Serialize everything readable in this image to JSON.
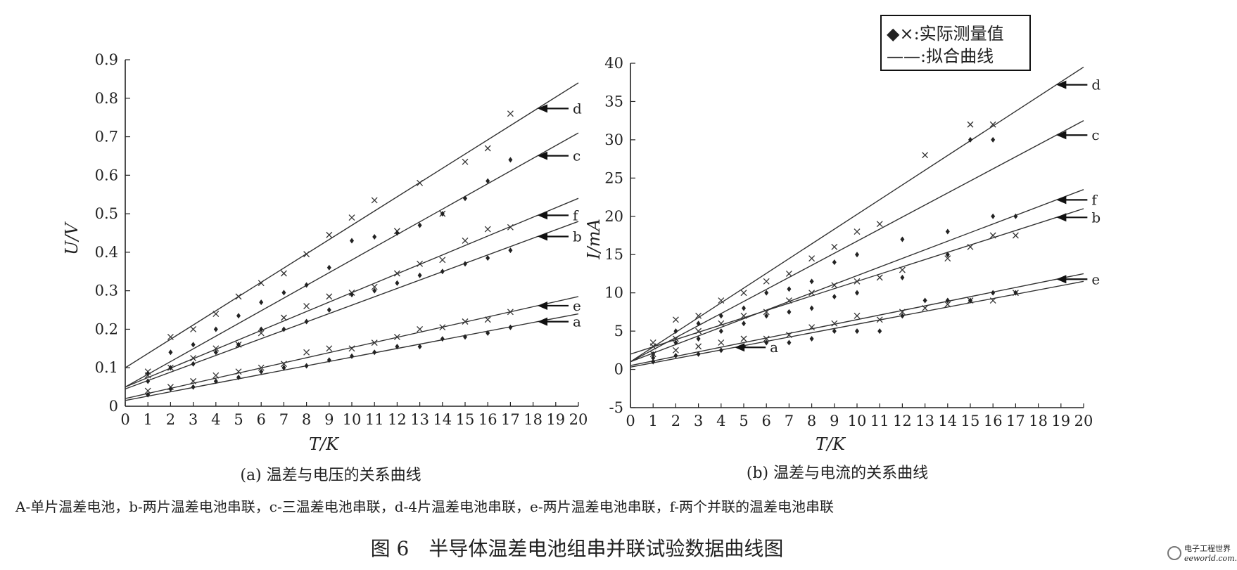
{
  "chart_data": [
    {
      "type": "scatter",
      "panel": "a",
      "caption": "(a) 温差与电压的关系曲线",
      "xlabel": "T/K",
      "ylabel": "U/V",
      "xlim": [
        0,
        20
      ],
      "ylim": [
        0,
        0.9
      ],
      "x_ticks": [
        "0",
        "1",
        "2",
        "3",
        "4",
        "5",
        "6",
        "7",
        "8",
        "9",
        "10",
        "11",
        "12",
        "13",
        "14",
        "15",
        "16",
        "17",
        "18",
        "19",
        "20"
      ],
      "y_ticks": [
        "0",
        "0.1",
        "0.2",
        "0.3",
        "0.4",
        "0.5",
        "0.6",
        "0.7",
        "0.8",
        "0.9"
      ],
      "grid": false,
      "fits": [
        {
          "name": "d",
          "start": 0.1,
          "end": 0.84,
          "label_x": 18.2
        },
        {
          "name": "c",
          "start": 0.05,
          "end": 0.71,
          "label_x": 18.2
        },
        {
          "name": "f",
          "start": 0.05,
          "end": 0.54,
          "label_x": 18.2
        },
        {
          "name": "b",
          "start": 0.045,
          "end": 0.48,
          "label_x": 18.2
        },
        {
          "name": "e",
          "start": 0.02,
          "end": 0.285,
          "label_x": 18.2
        },
        {
          "name": "a",
          "start": 0.015,
          "end": 0.24,
          "label_x": 18.2
        }
      ],
      "series": [
        {
          "marker": "x",
          "x": [
            1,
            2,
            3,
            4,
            5,
            6,
            7,
            8,
            9,
            10,
            11,
            12,
            13,
            14,
            15,
            16,
            17
          ],
          "y": [
            0.09,
            0.18,
            0.2,
            0.24,
            0.285,
            0.32,
            0.345,
            0.395,
            0.445,
            0.49,
            0.535,
            0.455,
            0.58,
            0.5,
            0.635,
            0.67,
            0.76
          ]
        },
        {
          "marker": "diamond",
          "x": [
            1,
            2,
            3,
            4,
            5,
            6,
            7,
            8,
            9,
            10,
            11,
            12,
            13,
            14,
            15,
            16,
            17
          ],
          "y": [
            0.085,
            0.14,
            0.16,
            0.2,
            0.235,
            0.27,
            0.295,
            0.315,
            0.36,
            0.43,
            0.44,
            0.45,
            0.47,
            0.5,
            0.54,
            0.585,
            0.64
          ]
        },
        {
          "marker": "x",
          "x": [
            1,
            2,
            3,
            4,
            5,
            6,
            7,
            8,
            9,
            10,
            11,
            12,
            13,
            14,
            15,
            16,
            17
          ],
          "y": [
            0.08,
            0.1,
            0.125,
            0.15,
            0.16,
            0.19,
            0.23,
            0.26,
            0.285,
            0.295,
            0.31,
            0.345,
            0.37,
            0.38,
            0.43,
            0.46,
            0.465
          ]
        },
        {
          "marker": "diamond",
          "x": [
            1,
            2,
            3,
            4,
            5,
            6,
            7,
            8,
            9,
            10,
            11,
            12,
            13,
            14,
            15,
            16,
            17
          ],
          "y": [
            0.065,
            0.1,
            0.11,
            0.14,
            0.16,
            0.2,
            0.2,
            0.22,
            0.25,
            0.29,
            0.3,
            0.32,
            0.34,
            0.35,
            0.37,
            0.385,
            0.405
          ]
        },
        {
          "marker": "x",
          "x": [
            1,
            2,
            3,
            4,
            5,
            6,
            7,
            8,
            9,
            10,
            11,
            12,
            13,
            14,
            15,
            16,
            17
          ],
          "y": [
            0.04,
            0.05,
            0.065,
            0.08,
            0.09,
            0.1,
            0.11,
            0.14,
            0.15,
            0.15,
            0.165,
            0.18,
            0.2,
            0.205,
            0.22,
            0.225,
            0.245
          ]
        },
        {
          "marker": "diamond",
          "x": [
            1,
            2,
            3,
            4,
            5,
            6,
            7,
            8,
            9,
            10,
            11,
            12,
            13,
            14,
            15,
            16,
            17
          ],
          "y": [
            0.03,
            0.045,
            0.05,
            0.065,
            0.075,
            0.09,
            0.1,
            0.105,
            0.12,
            0.13,
            0.14,
            0.155,
            0.155,
            0.175,
            0.18,
            0.19,
            0.205
          ]
        }
      ]
    },
    {
      "type": "scatter",
      "panel": "b",
      "caption": "(b) 温差与电流的关系曲线",
      "xlabel": "T/K",
      "ylabel": "I/mA",
      "xlim": [
        0,
        20
      ],
      "ylim": [
        -5,
        40
      ],
      "x_ticks": [
        "0",
        "1",
        "2",
        "3",
        "4",
        "5",
        "6",
        "7",
        "8",
        "9",
        "10",
        "11",
        "12",
        "13",
        "14",
        "15",
        "16",
        "17",
        "18",
        "19",
        "20"
      ],
      "y_ticks": [
        "-5",
        "0",
        "5",
        "10",
        "15",
        "20",
        "25",
        "30",
        "35",
        "40"
      ],
      "grid": false,
      "fits": [
        {
          "name": "d",
          "start": 1.0,
          "end": 39.5,
          "label_x": 18.8
        },
        {
          "name": "c",
          "start": 1.0,
          "end": 32.5,
          "label_x": 18.8
        },
        {
          "name": "f",
          "start": 1.0,
          "end": 23.5,
          "label_x": 18.8
        },
        {
          "name": "b",
          "start": 2.0,
          "end": 21.0,
          "label_x": 18.8
        },
        {
          "name": "e",
          "start": 0.5,
          "end": 12.5,
          "label_x": 18.8
        },
        {
          "name": "a",
          "start": 0.3,
          "end": 11.5,
          "label_x": 4.6
        }
      ],
      "series": [
        {
          "marker": "x",
          "x": [
            1,
            2,
            3,
            4,
            5,
            6,
            7,
            8,
            9,
            10,
            11,
            13,
            15,
            16
          ],
          "y": [
            3.5,
            6.5,
            7.0,
            9.0,
            10.0,
            11.5,
            12.5,
            14.5,
            16.0,
            18.0,
            19.0,
            28.0,
            32.0,
            32.0
          ]
        },
        {
          "marker": "diamond",
          "x": [
            1,
            2,
            3,
            4,
            5,
            6,
            7,
            8,
            9,
            10,
            12,
            14,
            15,
            16,
            17
          ],
          "y": [
            2.0,
            5.0,
            6.0,
            7.0,
            8.0,
            10.0,
            10.5,
            11.5,
            14.0,
            15.0,
            17.0,
            18.0,
            30.0,
            30.0,
            20.0
          ]
        },
        {
          "marker": "x",
          "x": [
            1,
            2,
            3,
            4,
            5,
            6,
            7,
            8,
            9,
            10,
            11,
            12,
            14,
            15,
            16,
            17
          ],
          "y": [
            3.0,
            4.0,
            5.0,
            6.0,
            7.0,
            7.5,
            9.0,
            10.0,
            11.0,
            11.5,
            12.0,
            13.0,
            14.5,
            16.0,
            17.5,
            17.5
          ]
        },
        {
          "marker": "diamond",
          "x": [
            1,
            2,
            3,
            4,
            5,
            6,
            7,
            8,
            9,
            10,
            12,
            14,
            16
          ],
          "y": [
            1.5,
            3.5,
            4.0,
            5.0,
            6.0,
            7.0,
            7.5,
            8.0,
            9.5,
            10.0,
            12.0,
            15.0,
            20.0
          ]
        },
        {
          "marker": "x",
          "x": [
            1,
            2,
            3,
            4,
            5,
            6,
            7,
            8,
            9,
            10,
            11,
            12,
            13,
            14,
            15,
            16,
            17
          ],
          "y": [
            2.0,
            2.5,
            3.0,
            3.5,
            4.0,
            4.0,
            4.5,
            5.5,
            6.0,
            7.0,
            6.5,
            7.5,
            8.0,
            8.5,
            9.0,
            9.0,
            10.0
          ]
        },
        {
          "marker": "diamond",
          "x": [
            1,
            2,
            3,
            4,
            5,
            6,
            7,
            8,
            9,
            10,
            11,
            12,
            13,
            14,
            15,
            16,
            17
          ],
          "y": [
            1.0,
            1.8,
            2.0,
            2.5,
            3.0,
            3.5,
            3.5,
            4.0,
            5.0,
            5.0,
            5.0,
            7.0,
            9.0,
            9.0,
            9.0,
            10.0,
            10.0
          ]
        }
      ]
    }
  ],
  "legend": {
    "line1": "◆×:实际测量值",
    "line2": "——:拟合曲线"
  },
  "footer": {
    "note": "A-单片温差电池，b-两片温差电池串联，c-三温差电池串联，d-4片温差电池串联，e-两片温差电池串联，f-两个并联的温差电池串联",
    "title": "图 6　半导体温差电池组串并联试验数据曲线图"
  },
  "watermark": {
    "text1": "电子工程世界",
    "text2": "eeworld.com.cn"
  }
}
